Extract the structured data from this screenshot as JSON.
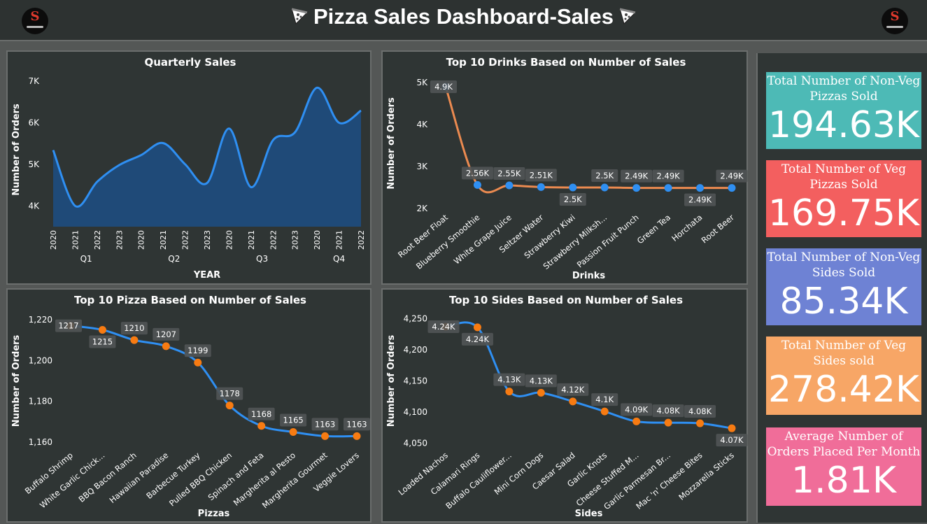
{
  "header": {
    "title": "Pizza Sales Dashboard-Sales"
  },
  "colors": {
    "area": "#1f4a78",
    "line": "#2f8ff2",
    "marker_blue": "#2f8ff2",
    "marker_orange": "#f77b12",
    "line_orange": "#eb8a50"
  },
  "charts": [
    {
      "type": "area",
      "title": "Quarterly Sales",
      "xlabel": "YEAR",
      "ylabel": "Number of Orders",
      "ylim": [
        3500,
        7200
      ],
      "yticks": [
        4000,
        5000,
        6000,
        7000
      ],
      "ytick_labels": [
        "4K",
        "5K",
        "6K",
        "7K"
      ],
      "categories": [
        "2020",
        "2021",
        "2022",
        "2023",
        "2020",
        "2021",
        "2022",
        "2023",
        "2020",
        "2021",
        "2022",
        "2023",
        "2020",
        "2021",
        "2022"
      ],
      "groups": [
        {
          "label": "Q1",
          "count": 4
        },
        {
          "label": "Q2",
          "count": 4
        },
        {
          "label": "Q3",
          "count": 4
        },
        {
          "label": "Q4",
          "count": 3
        }
      ],
      "values": [
        5340,
        4000,
        4580,
        4980,
        5220,
        5510,
        5000,
        4550,
        5860,
        4450,
        5580,
        5770,
        6840,
        6000,
        6290
      ]
    },
    {
      "type": "line",
      "title": "Top 10 Drinks Based on Number of Sales",
      "xlabel": "Drinks",
      "ylabel": "Number of Orders",
      "ylim": [
        2000,
        5100
      ],
      "yticks": [
        2000,
        3000,
        4000,
        5000
      ],
      "ytick_labels": [
        "2K",
        "3K",
        "4K",
        "5K"
      ],
      "categories": [
        "Root Beer Float",
        "Blueberry Smoothie",
        "White Grape Juice",
        "Seltzer Water",
        "Strawberry Kiwi",
        "Strawberry Milksh...",
        "Passion Fruit Punch",
        "Green Tea",
        "Horchata",
        "Root Beer"
      ],
      "values": [
        4900,
        2560,
        2550,
        2510,
        2500,
        2500,
        2490,
        2490,
        2490,
        2490
      ],
      "data_labels": [
        "4.9K",
        "2.56K",
        "2.55K",
        "2.51K",
        "2.5K",
        "2.5K",
        "2.49K",
        "2.49K",
        "2.49K",
        "2.49K"
      ],
      "label_pos": [
        "left",
        "above",
        "above",
        "above",
        "below",
        "above",
        "above",
        "above",
        "below",
        "above"
      ],
      "line_color": "#eb8a50",
      "marker_color": "#2f8ff2"
    },
    {
      "type": "line",
      "title": "Top 10 Pizza Based on Number of Sales",
      "xlabel": "Pizzas",
      "ylabel": "Number of Orders",
      "ylim": [
        1158,
        1222
      ],
      "yticks": [
        1160,
        1180,
        1200,
        1220
      ],
      "ytick_labels": [
        "1,160",
        "1,180",
        "1,200",
        "1,220"
      ],
      "categories": [
        "Buffalo Shrimp",
        "White Garlic Chick...",
        "BBQ Bacon Ranch",
        "Hawaiian Paradise",
        "Barbecue Turkey",
        "Pulled BBQ Chicken",
        "Spinach and Feta",
        "Margherita al Pesto",
        "Margherita Gourmet",
        "Veggie Lovers"
      ],
      "values": [
        1217,
        1215,
        1210,
        1207,
        1199,
        1178,
        1168,
        1165,
        1163,
        1163
      ],
      "data_labels": [
        "1217",
        "1215",
        "1210",
        "1207",
        "1199",
        "1178",
        "1168",
        "1165",
        "1163",
        "1163"
      ],
      "label_pos": [
        "left",
        "below",
        "above",
        "above",
        "above",
        "above",
        "above",
        "above",
        "above",
        "above"
      ],
      "line_color": "#2f8ff2",
      "marker_color": "#f77b12"
    },
    {
      "type": "line",
      "title": "Top 10 Sides Based on Number of Sales",
      "xlabel": "Sides",
      "ylabel": "Number of Orders",
      "ylim": [
        4045,
        4255
      ],
      "yticks": [
        4050,
        4100,
        4150,
        4200,
        4250
      ],
      "ytick_labels": [
        "4,050",
        "4,100",
        "4,150",
        "4,200",
        "4,250"
      ],
      "categories": [
        "Loaded Nachos",
        "Calamari Rings",
        "Buffalo Cauliflower...",
        "Mini Corn Dogs",
        "Caesar Salad",
        "Garlic Knots",
        "Cheese Stuffed M...",
        "Garlic Parmesan Br...",
        "Mac 'n' Cheese Bites",
        "Mozzarella Sticks"
      ],
      "values": [
        4237,
        4236,
        4133,
        4131,
        4117,
        4101,
        4085,
        4083,
        4082,
        4074
      ],
      "data_labels": [
        "4.24K",
        "4.24K",
        "4.13K",
        "4.13K",
        "4.12K",
        "4.1K",
        "4.09K",
        "4.08K",
        "4.08K",
        "4.07K"
      ],
      "label_pos": [
        "left",
        "below",
        "above",
        "above",
        "above",
        "above",
        "above",
        "above",
        "above",
        "below"
      ],
      "line_color": "#2f8ff2",
      "marker_color": "#f77b12"
    }
  ],
  "cards": [
    {
      "label_line1": "Total Number of Non-Veg",
      "label_line2": "Pizzas Sold",
      "value": "194.63K",
      "color": "#4dbab6"
    },
    {
      "label_line1": "Total Number of Veg",
      "label_line2": "Pizzas Sold",
      "value": "169.75K",
      "color": "#f35f5f"
    },
    {
      "label_line1": "Total Number of Non-Veg",
      "label_line2": "Sides Sold",
      "value": "85.34K",
      "color": "#6e82d4"
    },
    {
      "label_line1": "Total Number of Veg",
      "label_line2": "Sides sold",
      "value": "278.42K",
      "color": "#f7a666"
    },
    {
      "label_line1": "Average Number of",
      "label_line2": "Orders Placed Per Month",
      "value": "1.81K",
      "color": "#f06d99"
    }
  ]
}
